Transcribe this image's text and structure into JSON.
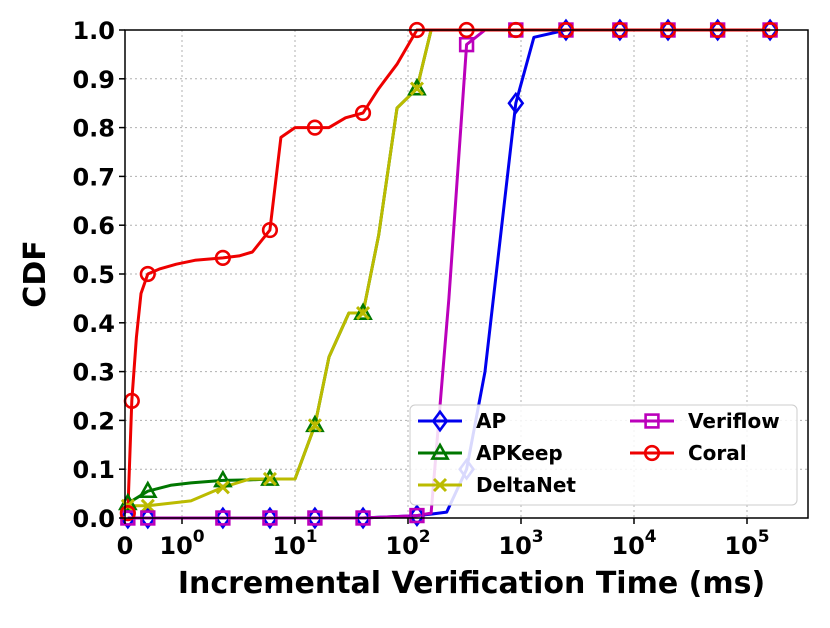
{
  "chart_data": {
    "type": "line",
    "title": "",
    "xlabel": "Incremental Verification Time (ms)",
    "ylabel": "CDF",
    "xscale": "symlog",
    "xlim": [
      0,
      200000
    ],
    "ylim": [
      0,
      1.0
    ],
    "grid": true,
    "legend_position": "bottom-right",
    "x_ticks": [
      {
        "value": 0,
        "base": "0",
        "exp": ""
      },
      {
        "value": 1,
        "base": "10",
        "exp": "0"
      },
      {
        "value": 10,
        "base": "10",
        "exp": "1"
      },
      {
        "value": 100,
        "base": "10",
        "exp": "2"
      },
      {
        "value": 1000,
        "base": "10",
        "exp": "3"
      },
      {
        "value": 10000,
        "base": "10",
        "exp": "4"
      },
      {
        "value": 100000,
        "base": "10",
        "exp": "5"
      }
    ],
    "y_ticks": [
      "0.0",
      "0.1",
      "0.2",
      "0.3",
      "0.4",
      "0.5",
      "0.6",
      "0.7",
      "0.8",
      "0.9",
      "1.0"
    ],
    "series": [
      {
        "name": "AP",
        "color": "#0000ee",
        "marker": "diamond",
        "x": [
          0.05,
          0.4,
          2.3,
          6,
          15,
          40,
          120,
          160,
          220,
          330,
          480,
          900,
          1300,
          2500,
          7500,
          20000,
          55000,
          160000
        ],
        "y": [
          0.0,
          0.0,
          0.0,
          0.0,
          0.0,
          0.0,
          0.005,
          0.008,
          0.012,
          0.1,
          0.3,
          0.85,
          0.985,
          1.0,
          1.0,
          1.0,
          1.0,
          1.0
        ],
        "marker_x": [
          0.05,
          0.4,
          2.3,
          6,
          15,
          40,
          120,
          330,
          900,
          2500,
          7500,
          20000,
          55000,
          160000
        ],
        "marker_y": [
          0.0,
          0.0,
          0.0,
          0.0,
          0.0,
          0.0,
          0.005,
          0.1,
          0.85,
          1.0,
          1.0,
          1.0,
          1.0,
          1.0
        ]
      },
      {
        "name": "APKeep",
        "color": "#007700",
        "marker": "triangle",
        "x": [
          0.05,
          0.4,
          0.8,
          1.2,
          2.3,
          4,
          6,
          10,
          15,
          20,
          30,
          40,
          55,
          80,
          120,
          160
        ],
        "y": [
          0.03,
          0.055,
          0.067,
          0.072,
          0.077,
          0.078,
          0.08,
          0.08,
          0.19,
          0.33,
          0.42,
          0.42,
          0.58,
          0.84,
          0.88,
          1.0
        ],
        "marker_x": [
          0.05,
          0.4,
          2.3,
          6,
          15,
          40,
          120
        ],
        "marker_y": [
          0.03,
          0.055,
          0.077,
          0.08,
          0.19,
          0.42,
          0.88
        ]
      },
      {
        "name": "DeltaNet",
        "color": "#bbbb00",
        "marker": "x",
        "x": [
          0.05,
          0.4,
          1.2,
          2.3,
          4,
          6,
          10,
          15,
          20,
          30,
          40,
          55,
          80,
          120,
          160
        ],
        "y": [
          0.025,
          0.025,
          0.035,
          0.063,
          0.08,
          0.08,
          0.08,
          0.19,
          0.33,
          0.42,
          0.42,
          0.58,
          0.84,
          0.88,
          1.0
        ],
        "marker_x": [
          0.05,
          0.4,
          2.3,
          6,
          15,
          40,
          120
        ],
        "marker_y": [
          0.025,
          0.025,
          0.063,
          0.08,
          0.19,
          0.42,
          0.88
        ]
      },
      {
        "name": "Veriflow",
        "color": "#bb00bb",
        "marker": "square",
        "x": [
          0.05,
          0.4,
          2.3,
          6,
          15,
          40,
          120,
          160,
          230,
          330,
          480,
          900,
          2500,
          7500,
          20000,
          55000,
          160000
        ],
        "y": [
          0.0,
          0.0,
          0.0,
          0.0,
          0.0,
          0.0,
          0.005,
          0.01,
          0.45,
          0.97,
          1.0,
          1.0,
          1.0,
          1.0,
          1.0,
          1.0,
          1.0
        ],
        "marker_x": [
          0.05,
          0.4,
          2.3,
          6,
          15,
          40,
          120,
          330,
          900,
          2500,
          7500,
          20000,
          55000,
          160000
        ],
        "marker_y": [
          0.0,
          0.0,
          0.0,
          0.0,
          0.0,
          0.0,
          0.005,
          0.97,
          1.0,
          1.0,
          1.0,
          1.0,
          1.0,
          1.0
        ]
      },
      {
        "name": "Coral",
        "color": "#ee0000",
        "marker": "circle",
        "x": [
          0.05,
          0.12,
          0.2,
          0.28,
          0.4,
          0.6,
          0.9,
          1.3,
          2.3,
          3.2,
          4.2,
          6,
          7.5,
          10,
          15,
          20,
          28,
          40,
          55,
          80,
          120,
          330,
          900,
          2500,
          7500,
          20000,
          55000,
          160000
        ],
        "y": [
          0.01,
          0.24,
          0.37,
          0.46,
          0.5,
          0.51,
          0.52,
          0.528,
          0.533,
          0.537,
          0.545,
          0.59,
          0.78,
          0.8,
          0.8,
          0.8,
          0.82,
          0.83,
          0.88,
          0.93,
          1.0,
          1.0,
          1.0,
          1.0,
          1.0,
          1.0,
          1.0,
          1.0
        ],
        "marker_x": [
          0.05,
          0.12,
          0.4,
          2.3,
          6,
          15,
          40,
          120,
          330,
          900,
          2500,
          7500,
          20000,
          55000,
          160000
        ],
        "marker_y": [
          0.01,
          0.24,
          0.5,
          0.533,
          0.59,
          0.8,
          0.83,
          1.0,
          1.0,
          1.0,
          1.0,
          1.0,
          1.0,
          1.0,
          1.0
        ]
      }
    ]
  }
}
